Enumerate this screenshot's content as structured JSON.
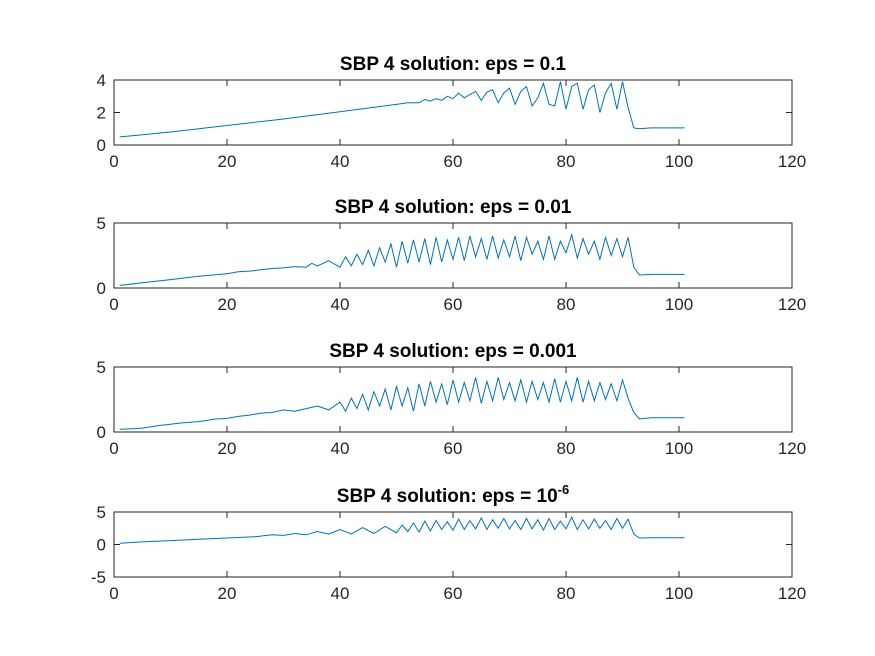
{
  "chart_data": [
    {
      "type": "line",
      "title": "SBP 4 solution: eps = 0.1",
      "title_parts": [
        "SBP 4 solution: eps = 0.1"
      ],
      "title_sup": "",
      "xlim": [
        0,
        120
      ],
      "ylim": [
        0,
        4
      ],
      "xticks": [
        0,
        20,
        40,
        60,
        80,
        100,
        120
      ],
      "yticks": [
        0,
        2,
        4
      ],
      "xtick_labels": [
        "0",
        "20",
        "40",
        "60",
        "80",
        "100",
        "120"
      ],
      "ytick_labels": [
        "0",
        "2",
        "4"
      ],
      "series": [
        {
          "color": "#0072bd",
          "x": [
            1,
            10,
            20,
            30,
            40,
            50,
            52,
            54,
            55,
            56,
            57,
            58,
            59,
            60,
            61,
            62,
            63,
            64,
            65,
            66,
            67,
            68,
            69,
            70,
            71,
            72,
            73,
            74,
            75,
            76,
            77,
            78,
            79,
            80,
            81,
            82,
            83,
            84,
            85,
            86,
            87,
            88,
            89,
            90,
            91,
            92,
            93,
            95,
            101
          ],
          "y": [
            0.5,
            0.8,
            1.2,
            1.6,
            2.05,
            2.5,
            2.6,
            2.6,
            2.8,
            2.7,
            2.85,
            2.75,
            3.0,
            2.85,
            3.2,
            2.9,
            3.1,
            3.3,
            2.75,
            3.25,
            3.4,
            2.6,
            3.2,
            3.5,
            2.5,
            3.3,
            3.6,
            2.4,
            2.9,
            3.8,
            2.5,
            2.4,
            3.9,
            2.2,
            3.6,
            3.8,
            2.2,
            3.4,
            3.7,
            2.0,
            3.2,
            3.8,
            2.2,
            3.9,
            2.3,
            1.05,
            1.0,
            1.05,
            1.05
          ]
        }
      ]
    },
    {
      "type": "line",
      "title": "SBP 4 solution: eps = 0.01",
      "title_parts": [
        "SBP 4 solution: eps = 0.01"
      ],
      "title_sup": "",
      "xlim": [
        0,
        120
      ],
      "ylim": [
        0,
        5
      ],
      "xticks": [
        0,
        20,
        40,
        60,
        80,
        100,
        120
      ],
      "yticks": [
        0,
        5
      ],
      "xtick_labels": [
        "0",
        "20",
        "40",
        "60",
        "80",
        "100",
        "120"
      ],
      "ytick_labels": [
        "0",
        "5"
      ],
      "series": [
        {
          "color": "#0072bd",
          "x": [
            1,
            5,
            10,
            15,
            20,
            22,
            24,
            26,
            28,
            30,
            32,
            34,
            35,
            36,
            38,
            40,
            41,
            42,
            43,
            44,
            45,
            46,
            47,
            48,
            49,
            50,
            51,
            52,
            53,
            54,
            55,
            56,
            57,
            58,
            59,
            60,
            61,
            62,
            63,
            64,
            65,
            66,
            67,
            68,
            69,
            70,
            71,
            72,
            73,
            74,
            75,
            76,
            77,
            78,
            79,
            80,
            81,
            82,
            83,
            84,
            85,
            86,
            87,
            88,
            89,
            90,
            91,
            92,
            93,
            95,
            101
          ],
          "y": [
            0.2,
            0.4,
            0.65,
            0.9,
            1.1,
            1.25,
            1.3,
            1.4,
            1.5,
            1.55,
            1.65,
            1.6,
            1.9,
            1.7,
            2.1,
            1.6,
            2.4,
            1.7,
            2.6,
            1.8,
            2.9,
            1.7,
            3.1,
            2.0,
            3.4,
            1.6,
            3.6,
            1.9,
            3.7,
            2.0,
            3.8,
            1.8,
            3.9,
            2.0,
            3.7,
            2.2,
            3.9,
            2.1,
            4.0,
            2.4,
            3.8,
            2.2,
            4.0,
            2.3,
            3.7,
            2.4,
            4.0,
            2.1,
            3.9,
            2.6,
            3.6,
            2.2,
            4.0,
            2.2,
            3.6,
            2.7,
            4.1,
            2.3,
            3.8,
            2.6,
            3.6,
            2.2,
            3.9,
            2.5,
            3.8,
            2.4,
            3.9,
            1.6,
            1.0,
            1.05,
            1.05
          ]
        }
      ]
    },
    {
      "type": "line",
      "title": "SBP 4 solution: eps = 0.001",
      "title_parts": [
        "SBP 4 solution: eps = 0.001"
      ],
      "title_sup": "",
      "xlim": [
        0,
        120
      ],
      "ylim": [
        0,
        5
      ],
      "xticks": [
        0,
        20,
        40,
        60,
        80,
        100,
        120
      ],
      "yticks": [
        0,
        5
      ],
      "xtick_labels": [
        "0",
        "20",
        "40",
        "60",
        "80",
        "100",
        "120"
      ],
      "ytick_labels": [
        "0",
        "5"
      ],
      "series": [
        {
          "color": "#0072bd",
          "x": [
            1,
            5,
            8,
            10,
            12,
            15,
            18,
            20,
            22,
            24,
            26,
            28,
            30,
            32,
            34,
            36,
            38,
            40,
            41,
            42,
            43,
            44,
            45,
            46,
            47,
            48,
            49,
            50,
            51,
            52,
            53,
            54,
            55,
            56,
            57,
            58,
            59,
            60,
            61,
            62,
            63,
            64,
            65,
            66,
            67,
            68,
            69,
            70,
            71,
            72,
            73,
            74,
            75,
            76,
            77,
            78,
            79,
            80,
            81,
            82,
            83,
            84,
            85,
            86,
            87,
            88,
            89,
            90,
            91,
            92,
            93,
            95,
            101
          ],
          "y": [
            0.2,
            0.3,
            0.5,
            0.6,
            0.7,
            0.8,
            1.0,
            1.05,
            1.2,
            1.3,
            1.45,
            1.5,
            1.7,
            1.6,
            1.8,
            2.0,
            1.7,
            2.3,
            1.6,
            2.6,
            1.8,
            2.9,
            1.7,
            3.1,
            2.0,
            3.3,
            1.7,
            3.5,
            2.0,
            3.4,
            1.6,
            3.7,
            2.0,
            3.9,
            2.3,
            3.7,
            2.1,
            4.0,
            2.3,
            3.8,
            2.4,
            4.2,
            2.2,
            3.9,
            2.4,
            4.2,
            2.5,
            3.8,
            2.4,
            4.0,
            2.3,
            3.9,
            2.5,
            3.8,
            2.3,
            4.1,
            2.3,
            3.9,
            2.4,
            4.2,
            2.3,
            3.9,
            2.4,
            3.8,
            2.5,
            3.7,
            2.4,
            4.0,
            2.6,
            1.5,
            1.0,
            1.1,
            1.1
          ]
        }
      ]
    },
    {
      "type": "line",
      "title": "SBP 4 solution: eps = 10^-6",
      "title_parts": [
        "SBP 4 solution: eps = 10"
      ],
      "title_sup": "-6",
      "xlim": [
        0,
        120
      ],
      "ylim": [
        -5,
        5
      ],
      "xticks": [
        0,
        20,
        40,
        60,
        80,
        100,
        120
      ],
      "yticks": [
        -5,
        0,
        5
      ],
      "xtick_labels": [
        "0",
        "20",
        "40",
        "60",
        "80",
        "100",
        "120"
      ],
      "ytick_labels": [
        "-5",
        "0",
        "5"
      ],
      "series": [
        {
          "color": "#0072bd",
          "x": [
            1,
            5,
            10,
            15,
            20,
            25,
            28,
            30,
            32,
            34,
            36,
            38,
            40,
            42,
            44,
            46,
            48,
            50,
            51,
            52,
            53,
            54,
            55,
            56,
            57,
            58,
            59,
            60,
            61,
            62,
            63,
            64,
            65,
            66,
            67,
            68,
            69,
            70,
            71,
            72,
            73,
            74,
            75,
            76,
            77,
            78,
            79,
            80,
            81,
            82,
            83,
            84,
            85,
            86,
            87,
            88,
            89,
            90,
            91,
            92,
            93,
            95,
            101
          ],
          "y": [
            0.2,
            0.4,
            0.6,
            0.8,
            1.0,
            1.2,
            1.5,
            1.4,
            1.7,
            1.5,
            2.0,
            1.6,
            2.3,
            1.6,
            2.6,
            1.7,
            2.8,
            1.8,
            3.0,
            2.0,
            3.3,
            1.9,
            3.6,
            2.1,
            3.7,
            2.3,
            3.5,
            2.2,
            3.9,
            2.3,
            3.7,
            2.4,
            4.1,
            2.3,
            3.8,
            2.5,
            4.0,
            2.4,
            3.7,
            2.3,
            4.0,
            2.4,
            3.8,
            2.2,
            4.0,
            2.3,
            3.6,
            2.4,
            4.2,
            2.3,
            3.8,
            2.4,
            3.9,
            2.5,
            3.7,
            2.3,
            4.0,
            2.5,
            3.9,
            1.6,
            1.0,
            1.05,
            1.05
          ]
        }
      ]
    }
  ]
}
